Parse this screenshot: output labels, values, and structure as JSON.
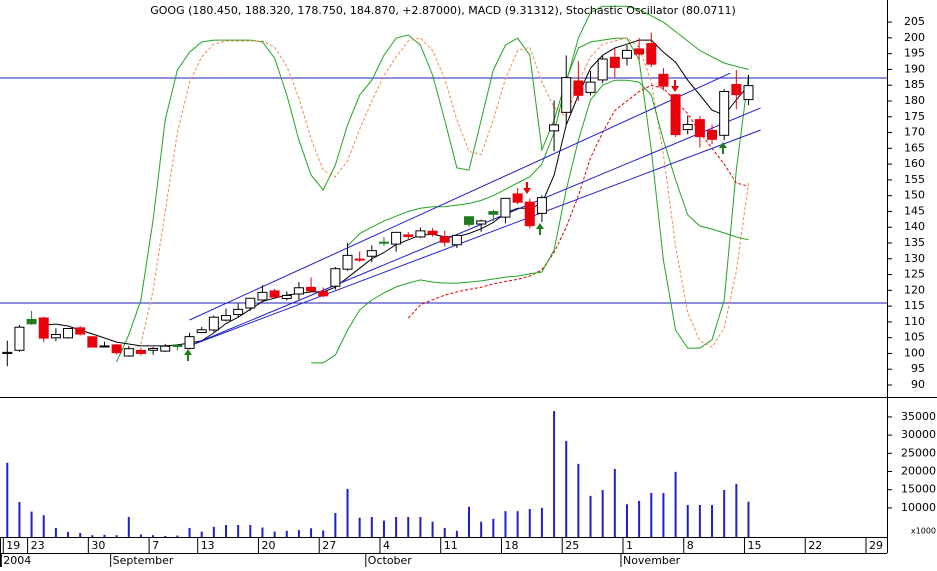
{
  "chart_data": {
    "type": "candlestick",
    "title": "GOOG (180.450, 188.320, 178.750, 184.870, +2.87000), MACD (9.31312), Stochastic Oscillator (80.0711)",
    "open": [
      100,
      101,
      110.75,
      111.24,
      104.96,
      104.95,
      108.1,
      105.28,
      102.32,
      102.7,
      99.19,
      100.95,
      101.01,
      100.74,
      102.53,
      101.6,
      106.63,
      107.44,
      110.56,
      112.34,
      114.42,
      116.95,
      119.81,
      117.4,
      118.84,
      120.94,
      119.56,
      121.3,
      126.7,
      129.9,
      130.8,
      135.25,
      134.66,
      137.55,
      136.92,
      138.72,
      137,
      134.44,
      143.32,
      141.01,
      144.93,
      143.2,
      150.56,
      147.94,
      144.4,
      170.54,
      176.4,
      186.34,
      182.72,
      186.68,
      193.83,
      193.55,
      196.5,
      198.18,
      188.44,
      181.98,
      170.93,
      174.1,
      170.67,
      169.13,
      185.23,
      180.45
    ],
    "high": [
      104.06,
      109,
      113.48,
      111.6,
      108,
      107.95,
      108.62,
      105.49,
      103.71,
      102.97,
      102.37,
      101.74,
      102,
      103.03,
      102.71,
      106.56,
      108.41,
      112,
      114.23,
      115.8,
      117.49,
      121.6,
      120.42,
      119.67,
      122.63,
      124.1,
      120.88,
      127.4,
      135.02,
      132.3,
      134.24,
      136.87,
      138.53,
      138.45,
      139.88,
      139.68,
      138.86,
      137.61,
      143.55,
      142.38,
      145.5,
      149.2,
      152.4,
      148.99,
      150.13,
      180.17,
      194.43,
      192.64,
      189.52,
      194.39,
      196.8,
      197.67,
      199.95,
      201.6,
      190.4,
      182.3,
      175.44,
      175.2,
      172.52,
      183.75,
      189.8,
      188.32
    ],
    "low": [
      95.96,
      100.5,
      109.05,
      103.57,
      103.88,
      104.66,
      105.69,
      102.01,
      102.16,
      99.67,
      98.94,
      99.32,
      99.61,
      100.5,
      101,
      101.3,
      106.46,
      106.79,
      110.2,
      111.65,
      113.55,
      116.77,
      117.51,
      116.81,
      117.02,
      119.76,
      117.8,
      120.21,
      126.23,
      129,
      128.9,
      134.03,
      132.24,
      136,
      136.55,
      137.02,
      133.85,
      133.4,
      140.08,
      138.56,
      141.95,
      141.21,
      147.35,
      139.6,
      141.62,
      164.08,
      172.55,
      180,
      181.77,
      185.6,
      187.5,
      191.27,
      193.08,
      190.75,
      183.35,
      168.55,
      169.4,
      165.27,
      166.33,
      167.57,
      177.4,
      178.75
    ],
    "close": [
      100.34,
      108.31,
      109.4,
      104.87,
      106,
      107.91,
      106.15,
      102.01,
      102.37,
      100.25,
      101.51,
      100.01,
      101.58,
      102.3,
      102.48,
      105.33,
      107.5,
      111.49,
      112,
      113.97,
      117.49,
      119.36,
      117.84,
      118.38,
      120.82,
      119.83,
      118.26,
      126.86,
      131.08,
      129.6,
      132.58,
      135.06,
      138.37,
      137.08,
      138.85,
      137.73,
      135.26,
      137.4,
      140.9,
      142,
      144.11,
      149.16,
      147.94,
      140.49,
      149.38,
      172.43,
      187.4,
      181.8,
      185.97,
      193.3,
      190.64,
      196.03,
      194.87,
      191.67,
      184.7,
      169.35,
      172.55,
      168.7,
      167.86,
      183.02,
      182,
      184.87
    ],
    "up_color": "#1e7d1e",
    "down_color": "#e8000b",
    "hollow_color": "#ffffff",
    "xlim": [
      -0.6,
      72.4
    ],
    "xticks": [
      {
        "value": 0,
        "label": "19"
      },
      {
        "value": 2,
        "label": "23"
      },
      {
        "value": 7,
        "label": "30"
      },
      {
        "value": 12,
        "label": "7"
      },
      {
        "value": 16,
        "label": "13"
      },
      {
        "value": 21,
        "label": "20"
      },
      {
        "value": 26,
        "label": "27"
      },
      {
        "value": 31,
        "label": "4"
      },
      {
        "value": 36,
        "label": "11"
      },
      {
        "value": 41,
        "label": "18"
      },
      {
        "value": 46,
        "label": "25"
      },
      {
        "value": 51,
        "label": "1"
      },
      {
        "value": 56,
        "label": "8"
      },
      {
        "value": 61,
        "label": "15"
      },
      {
        "value": 66,
        "label": "22"
      },
      {
        "value": 71,
        "label": "29"
      }
    ],
    "month_ticks": [
      {
        "value": 0,
        "label": "2004"
      },
      {
        "value": 9,
        "label": "September"
      },
      {
        "value": 30,
        "label": "October"
      },
      {
        "value": 51,
        "label": "November"
      }
    ],
    "ylim": [
      86.2,
      212
    ],
    "yticks": [
      90,
      95,
      100,
      105,
      110,
      115,
      120,
      125,
      130,
      135,
      140,
      145,
      150,
      155,
      160,
      165,
      170,
      175,
      180,
      185,
      190,
      195,
      200,
      205
    ],
    "overlays": [
      {
        "color": "#22a522",
        "dashed": false,
        "values": [
          null,
          null,
          null,
          null,
          null,
          null,
          null,
          null,
          null,
          97.3,
          105.9,
          116.9,
          142.3,
          174.0,
          189.8,
          195.5,
          198.7,
          199.3,
          199.3,
          199.3,
          199.3,
          198.7,
          193.6,
          181.9,
          167.6,
          156.5,
          151.8,
          159.7,
          172.4,
          181.9,
          186.6,
          194.5,
          199.9,
          200.9,
          197.7,
          188.2,
          174.0,
          158.8,
          158.1,
          174.0,
          189.8,
          197.7,
          199.9,
          194.5,
          164.5,
          174.0,
          186.6,
          196.8,
          198.7,
          199.3,
          199.9,
          199.9,
          193.0,
          164.5,
          129.6,
          107.4,
          101.7,
          101.7,
          104.3,
          116.9,
          158.1,
          188.2
        ]
      },
      {
        "color": "#f08a50",
        "dashed": true,
        "values": [
          null,
          null,
          null,
          null,
          null,
          null,
          null,
          null,
          null,
          null,
          100,
          103,
          120,
          145,
          170,
          186,
          194,
          198,
          199,
          199,
          199,
          199,
          197,
          191,
          181,
          168,
          158,
          156,
          161,
          171,
          180,
          188,
          194,
          199,
          200,
          196,
          187,
          174,
          164,
          163,
          174,
          187,
          196,
          197,
          186,
          178,
          175,
          186,
          194,
          198,
          199,
          200,
          197,
          186,
          163,
          134,
          113,
          104,
          102,
          108,
          126,
          154
        ]
      },
      {
        "color": "#e00000",
        "dashed": true,
        "values": [
          null,
          null,
          null,
          null,
          null,
          null,
          null,
          null,
          null,
          null,
          null,
          null,
          null,
          null,
          null,
          null,
          null,
          null,
          null,
          null,
          null,
          null,
          null,
          null,
          null,
          null,
          null,
          null,
          null,
          null,
          null,
          null,
          null,
          111.2,
          115.4,
          117,
          118.5,
          119.5,
          120.3,
          121,
          122,
          122.8,
          123.5,
          124.5,
          126.5,
          132,
          140,
          150,
          162,
          170,
          177,
          180,
          183,
          185,
          184,
          180,
          176,
          170,
          165,
          160,
          154,
          153
        ]
      },
      {
        "color": "#22a522",
        "dashed": false,
        "values": [
          null,
          null,
          null,
          null,
          null,
          null,
          null,
          null,
          null,
          null,
          null,
          null,
          null,
          null,
          null,
          null,
          null,
          null,
          null,
          null,
          null,
          null,
          null,
          null,
          null,
          97,
          97,
          99.5,
          107.4,
          113.8,
          116.9,
          119.2,
          121.1,
          122.3,
          123.3,
          122.6,
          122.3,
          122.3,
          122.6,
          123,
          123.6,
          124.2,
          124.5,
          125.2,
          125.8,
          132.8,
          151.8,
          167.6,
          180.3,
          185,
          186.6,
          186.6,
          186,
          181.9,
          167.6,
          155,
          143.9,
          140.4,
          139.4,
          138.2,
          136.9,
          136
        ]
      },
      {
        "color": "#22a522",
        "dashed": false,
        "values": [
          null,
          null,
          null,
          null,
          null,
          null,
          null,
          null,
          null,
          null,
          null,
          null,
          null,
          null,
          null,
          null,
          null,
          null,
          null,
          null,
          null,
          null,
          null,
          null,
          null,
          null,
          null,
          null,
          134,
          138,
          140,
          142,
          143.5,
          145,
          146,
          146.5,
          146.5,
          147,
          147.5,
          148.5,
          150,
          152,
          154,
          156,
          160,
          170,
          186,
          200,
          208,
          210,
          210,
          210,
          209,
          207,
          205,
          202,
          199,
          196,
          194,
          192,
          191,
          190
        ]
      },
      {
        "color": "#000000",
        "dashed": false,
        "values": [
          null,
          null,
          null,
          109.0,
          109.3,
          108.7,
          107.4,
          106.2,
          104.9,
          103.6,
          103.0,
          102.4,
          102.4,
          102.4,
          102.7,
          103.3,
          104,
          106.5,
          109.5,
          111.5,
          114,
          116.5,
          117.5,
          118.5,
          119,
          119.5,
          119.5,
          121,
          124,
          127,
          130,
          132,
          134.5,
          136,
          137.5,
          137.8,
          137,
          137,
          138,
          139.5,
          141.5,
          144.5,
          146,
          146,
          147.5,
          156.5,
          172.4,
          181.9,
          190.4,
          194.5,
          196.8,
          198,
          199.3,
          199.3,
          195.5,
          192.3,
          186.6,
          181.9,
          177.1,
          175.5,
          180.3,
          185
        ]
      }
    ],
    "hlines": [
      {
        "value": 187.3,
        "color": "#1c1cb4"
      },
      {
        "value": 116.0,
        "color": "#1c1cb4"
      }
    ],
    "trendlines": [
      {
        "x": [
          15,
          59.5
        ],
        "y": [
          110.6,
          188.8
        ],
        "color": "#1c1cd0"
      },
      {
        "x": [
          15,
          62
        ],
        "y": [
          102.4,
          177.8
        ],
        "color": "#1c1cd0"
      },
      {
        "x": [
          15,
          62
        ],
        "y": [
          102.4,
          170.8
        ],
        "color": "#1c1cd0"
      }
    ],
    "volume": {
      "values": [
        22400,
        11600,
        9000,
        8000,
        4500,
        3400,
        3100,
        2500,
        2600,
        2500,
        7500,
        2700,
        2500,
        2300,
        2400,
        4500,
        3500,
        4800,
        5300,
        5300,
        5300,
        4600,
        3500,
        3700,
        3900,
        4400,
        3800,
        8600,
        15200,
        7300,
        7500,
        6500,
        7500,
        7500,
        7500,
        6200,
        4500,
        3700,
        10300,
        6200,
        7000,
        9100,
        9100,
        9700,
        10000,
        36600,
        28400,
        22100,
        13300,
        14900,
        20700,
        11000,
        11900,
        14100,
        14100,
        19900,
        10800,
        10800,
        10800,
        14900,
        16600,
        11700
      ],
      "color": "#1f1fc8",
      "ylim": [
        2000,
        40200
      ],
      "yticks": [
        10000,
        15000,
        20000,
        25000,
        30000,
        35000
      ],
      "unit_label": "x1000"
    }
  }
}
